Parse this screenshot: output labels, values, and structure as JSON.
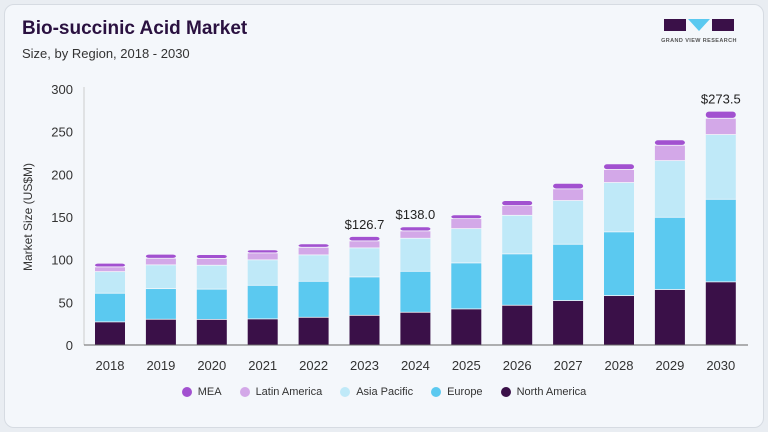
{
  "header": {
    "title": "Bio-succinic Acid Market",
    "subtitle": "Size, by Region, 2018 - 2030",
    "logo_text": "GRAND VIEW RESEARCH"
  },
  "chart_data": {
    "type": "bar",
    "stacked": true,
    "title": "Bio-succinic Acid Market",
    "subtitle": "Size, by Region, 2018 - 2030",
    "xlabel": "",
    "ylabel": "Market Size (US$M)",
    "ylim": [
      0,
      300
    ],
    "yticks": [
      0,
      50,
      100,
      150,
      200,
      250,
      300
    ],
    "grid": false,
    "legend": "bottom",
    "categories": [
      "2018",
      "2019",
      "2020",
      "2021",
      "2022",
      "2023",
      "2024",
      "2025",
      "2026",
      "2027",
      "2028",
      "2029",
      "2030"
    ],
    "series": [
      {
        "name": "North America",
        "color": "#3a1048",
        "values": [
          26.6,
          29.7,
          29.5,
          30.1,
          32.0,
          34.3,
          37.9,
          41.8,
          46.1,
          51.6,
          57.4,
          64.5,
          73.5
        ]
      },
      {
        "name": "Europe",
        "color": "#5bc9f0",
        "values": [
          33.6,
          35.9,
          35.5,
          39.4,
          42.2,
          45.0,
          48.0,
          53.9,
          60.2,
          66.0,
          74.7,
          84.7,
          96.8
        ]
      },
      {
        "name": "Asia Pacific",
        "color": "#bfe9f8",
        "values": [
          25.3,
          27.8,
          28.0,
          29.8,
          30.9,
          34.0,
          38.7,
          40.2,
          45.2,
          51.2,
          57.8,
          66.4,
          75.8
        ]
      },
      {
        "name": "Latin America",
        "color": "#d3a8e8",
        "values": [
          5.5,
          7.8,
          8.0,
          8.1,
          8.9,
          8.2,
          8.6,
          11.7,
          11.4,
          13.7,
          15.2,
          18.0,
          19.1
        ]
      },
      {
        "name": "MEA",
        "color": "#a251d0",
        "values": [
          4.3,
          4.7,
          4.5,
          3.6,
          4.0,
          5.2,
          4.8,
          4.4,
          5.9,
          6.5,
          6.7,
          6.3,
          8.3
        ]
      }
    ],
    "annotations": [
      {
        "category": "2023",
        "text": "$126.7"
      },
      {
        "category": "2024",
        "text": "$138.0"
      },
      {
        "category": "2030",
        "text": "$273.5"
      }
    ]
  }
}
